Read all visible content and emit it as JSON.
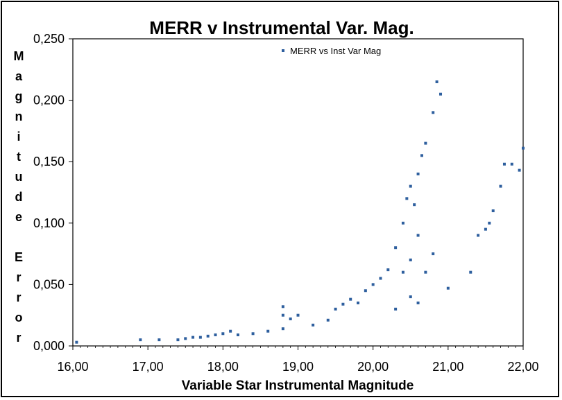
{
  "chart_data": {
    "type": "scatter",
    "title": "MERR v Instrumental Var. Mag.",
    "xlabel": "Variable Star Instrumental Magnitude",
    "ylabel": "Magnitude Error",
    "xlim": [
      16,
      22
    ],
    "ylim": [
      0,
      0.25
    ],
    "x_ticks": [
      "16,00",
      "17,00",
      "18,00",
      "19,00",
      "20,00",
      "21,00",
      "22,00"
    ],
    "y_ticks": [
      "0,000",
      "0,050",
      "0,100",
      "0,150",
      "0,200",
      "0,250"
    ],
    "grid": false,
    "legend_position": "top-center",
    "marker_color": "#2e5f9e",
    "series": [
      {
        "name": "MERR vs Inst Var Mag",
        "points": [
          [
            16.05,
            0.003
          ],
          [
            16.9,
            0.005
          ],
          [
            17.15,
            0.005
          ],
          [
            17.4,
            0.005
          ],
          [
            17.5,
            0.006
          ],
          [
            17.6,
            0.007
          ],
          [
            17.7,
            0.007
          ],
          [
            17.8,
            0.008
          ],
          [
            17.9,
            0.009
          ],
          [
            18.0,
            0.01
          ],
          [
            18.1,
            0.012
          ],
          [
            18.2,
            0.009
          ],
          [
            18.4,
            0.01
          ],
          [
            18.6,
            0.012
          ],
          [
            18.8,
            0.014
          ],
          [
            18.8,
            0.032
          ],
          [
            18.8,
            0.025
          ],
          [
            18.9,
            0.022
          ],
          [
            19.0,
            0.025
          ],
          [
            19.2,
            0.017
          ],
          [
            19.4,
            0.021
          ],
          [
            19.5,
            0.03
          ],
          [
            19.6,
            0.034
          ],
          [
            19.7,
            0.038
          ],
          [
            19.8,
            0.035
          ],
          [
            19.9,
            0.045
          ],
          [
            20.0,
            0.05
          ],
          [
            20.1,
            0.055
          ],
          [
            20.2,
            0.062
          ],
          [
            20.3,
            0.08
          ],
          [
            20.4,
            0.1
          ],
          [
            20.45,
            0.12
          ],
          [
            20.5,
            0.13
          ],
          [
            20.55,
            0.115
          ],
          [
            20.6,
            0.14
          ],
          [
            20.65,
            0.155
          ],
          [
            20.7,
            0.165
          ],
          [
            20.6,
            0.09
          ],
          [
            20.5,
            0.07
          ],
          [
            20.4,
            0.06
          ],
          [
            20.3,
            0.03
          ],
          [
            20.5,
            0.04
          ],
          [
            20.6,
            0.035
          ],
          [
            20.7,
            0.06
          ],
          [
            20.8,
            0.075
          ],
          [
            20.8,
            0.19
          ],
          [
            20.85,
            0.215
          ],
          [
            20.9,
            0.205
          ],
          [
            21.0,
            0.047
          ],
          [
            21.3,
            0.06
          ],
          [
            21.4,
            0.09
          ],
          [
            21.5,
            0.095
          ],
          [
            21.55,
            0.1
          ],
          [
            21.6,
            0.11
          ],
          [
            21.7,
            0.13
          ],
          [
            21.75,
            0.148
          ],
          [
            21.85,
            0.148
          ],
          [
            21.95,
            0.143
          ],
          [
            22.0,
            0.161
          ]
        ]
      }
    ]
  }
}
